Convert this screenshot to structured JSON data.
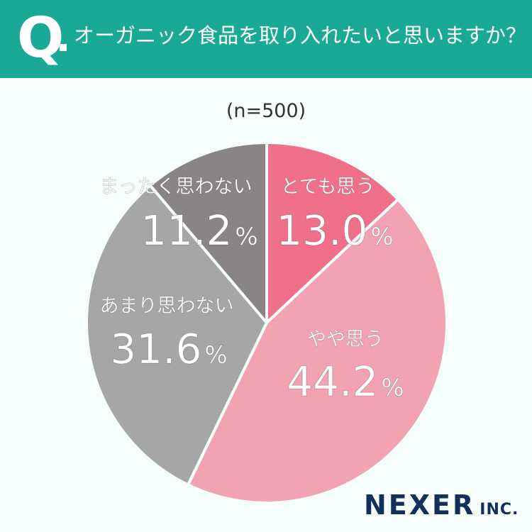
{
  "header": {
    "q_mark": "Q",
    "question": "オーガニック食品を取り入れたいと思いますか？"
  },
  "sample_size": "(n=500)",
  "colors": {
    "header_bg": "#1aa994",
    "slice_strong_agree": "#f0708a",
    "slice_agree": "#f2a3b1",
    "slice_disagree": "#a6a6a6",
    "slice_strong_disagree": "#8a8585"
  },
  "chart_data": {
    "type": "pie",
    "title": "オーガニック食品を取り入れたいと思いますか？",
    "slices": [
      {
        "label": "とても思う",
        "value": 13.0,
        "display": "13.0",
        "color": "#f0708a"
      },
      {
        "label": "やや思う",
        "value": 44.2,
        "display": "44.2",
        "color": "#f2a3b1"
      },
      {
        "label": "あまり思わない",
        "value": 31.6,
        "display": "31.6",
        "color": "#a6a6a6"
      },
      {
        "label": "まったく思わない",
        "value": 11.2,
        "display": "11.2",
        "color": "#8a8585"
      }
    ],
    "unit": "%"
  },
  "logo": {
    "main": "NEXER",
    "sub": "INC."
  }
}
